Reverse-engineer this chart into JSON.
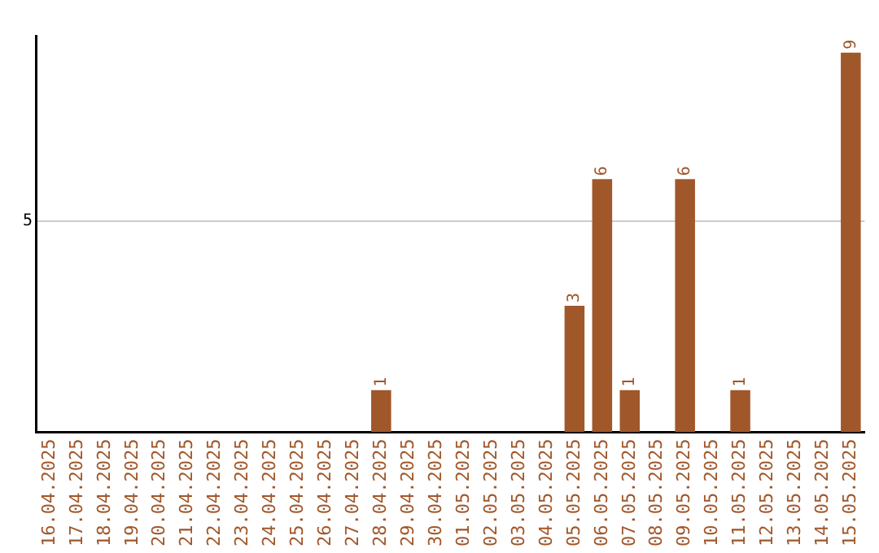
{
  "chart_data": {
    "type": "bar",
    "categories": [
      "16.04.2025",
      "17.04.2025",
      "18.04.2025",
      "19.04.2025",
      "20.04.2025",
      "21.04.2025",
      "22.04.2025",
      "23.04.2025",
      "24.04.2025",
      "25.04.2025",
      "26.04.2025",
      "27.04.2025",
      "28.04.2025",
      "29.04.2025",
      "30.04.2025",
      "01.05.2025",
      "02.05.2025",
      "03.05.2025",
      "04.05.2025",
      "05.05.2025",
      "06.05.2025",
      "07.05.2025",
      "08.05.2025",
      "09.05.2025",
      "10.05.2025",
      "11.05.2025",
      "12.05.2025",
      "13.05.2025",
      "14.05.2025",
      "15.05.2025"
    ],
    "values": [
      null,
      null,
      null,
      null,
      null,
      null,
      null,
      null,
      null,
      null,
      null,
      null,
      1,
      null,
      null,
      null,
      null,
      null,
      null,
      3,
      6,
      1,
      null,
      6,
      null,
      1,
      null,
      null,
      null,
      9
    ],
    "data_labels": true,
    "color": "#a0572a",
    "ylim": [
      0,
      9.4
    ],
    "yticks": [
      5
    ],
    "grid": "y",
    "legend": false
  }
}
